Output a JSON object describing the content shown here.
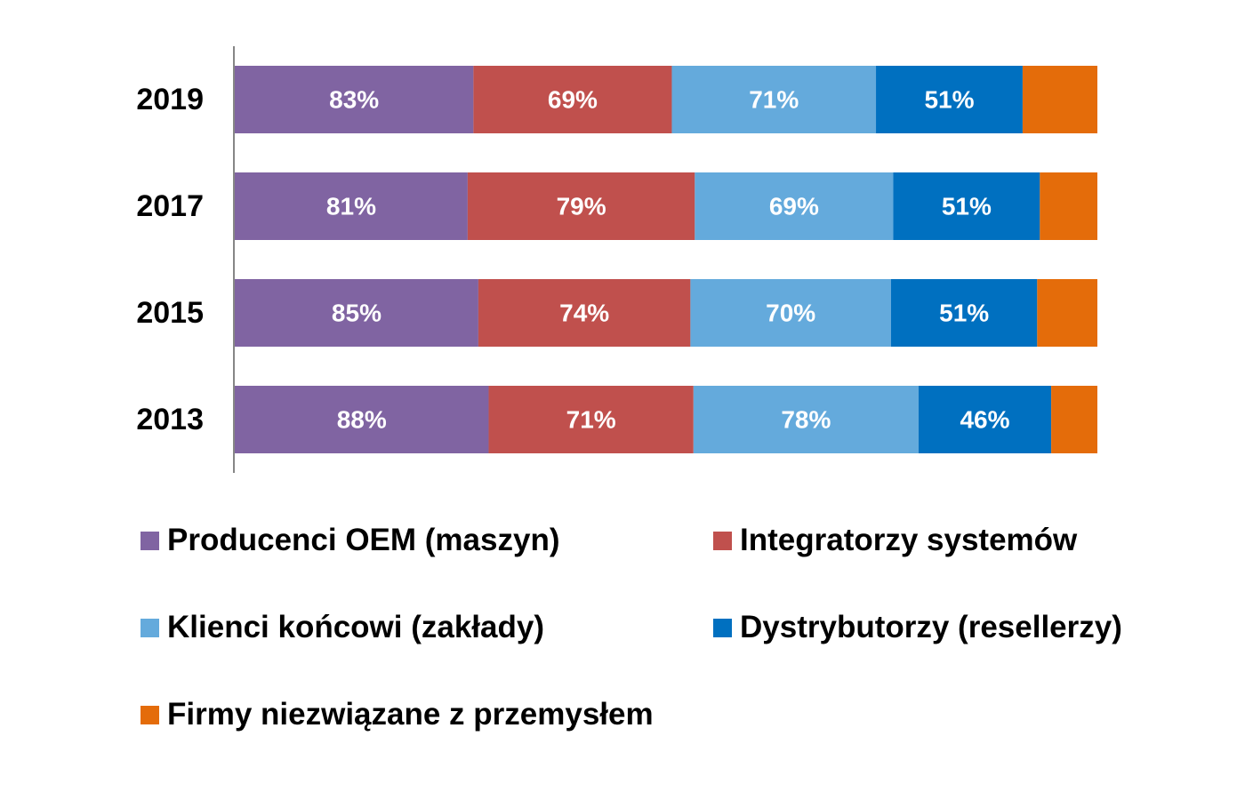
{
  "chart_data": {
    "type": "bar",
    "orientation": "horizontal",
    "stacked": true,
    "categories": [
      "2019",
      "2017",
      "2015",
      "2013"
    ],
    "series": [
      {
        "name": "Producenci OEM (maszyn)",
        "color": "#8064A2",
        "values": [
          83,
          81,
          85,
          88
        ],
        "labels": [
          "83%",
          "81%",
          "85%",
          "88%"
        ]
      },
      {
        "name": "Integratorzy systemów",
        "color": "#C0504D",
        "values": [
          69,
          79,
          74,
          71
        ],
        "labels": [
          "69%",
          "79%",
          "74%",
          "71%"
        ]
      },
      {
        "name": "Klienci końcowi (zakłady)",
        "color": "#64AADC",
        "values": [
          71,
          69,
          70,
          78
        ],
        "labels": [
          "71%",
          "69%",
          "70%",
          "78%"
        ]
      },
      {
        "name": "Dystrybutorzy (resellerzy)",
        "color": "#0070C0",
        "values": [
          51,
          51,
          51,
          46
        ],
        "labels": [
          "51%",
          "51%",
          "51%",
          "46%"
        ]
      },
      {
        "name": "Firmy niezwiązane z przemysłem",
        "color": "#E46C0A",
        "values": [
          26,
          20,
          21,
          16
        ],
        "labels": [
          "",
          "",
          "",
          ""
        ]
      }
    ],
    "grid": false,
    "legend_position": "bottom"
  }
}
